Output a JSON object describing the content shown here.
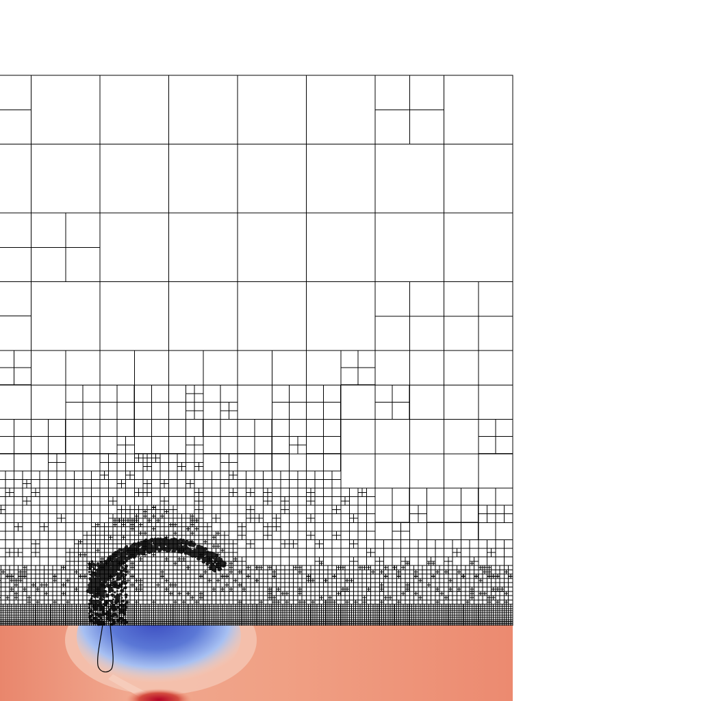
{
  "view": {
    "background": "#ffffff",
    "mesh_line_color": "#000000",
    "interface_outline_color": "#000000"
  },
  "legend": null,
  "colormap": {
    "name": "coolwarm",
    "cold": "#3b4cc0",
    "neutral": "#dddddd",
    "warm": "#b40426",
    "field_base": "#ec8c72"
  },
  "features": [
    "adaptive-quadtree-mesh",
    "fluid-field-colormap",
    "bubble-outline",
    "cavity",
    "jet"
  ]
}
